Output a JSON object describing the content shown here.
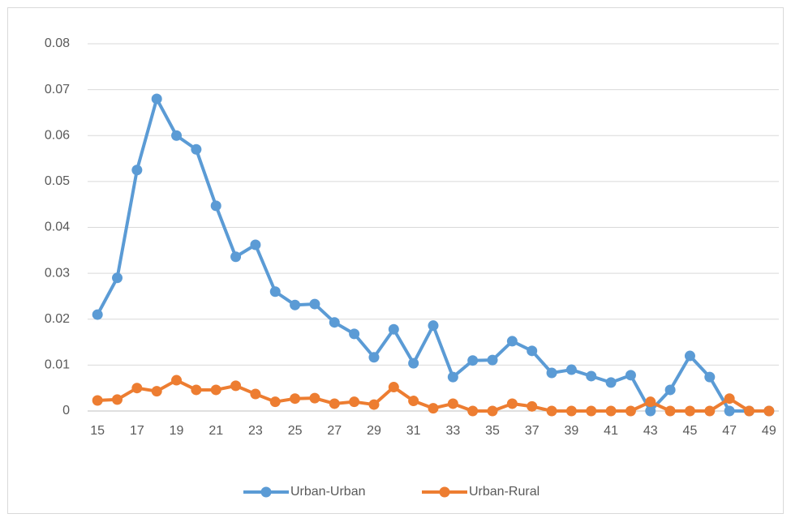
{
  "chart_data": {
    "type": "line",
    "categories": [
      15,
      null,
      17,
      null,
      19,
      null,
      21,
      null,
      23,
      null,
      25,
      null,
      27,
      null,
      29,
      null,
      31,
      null,
      33,
      null,
      35,
      null,
      37,
      null,
      39,
      null,
      41,
      null,
      43,
      null,
      45,
      null,
      47,
      null,
      49
    ],
    "series": [
      {
        "name": "Urban-Urban",
        "color": "#5b9bd5",
        "values": [
          0.021,
          0.029,
          0.0525,
          0.068,
          0.06,
          0.057,
          0.0447,
          0.0336,
          0.0362,
          0.026,
          0.0231,
          0.0233,
          0.0193,
          0.0168,
          0.0117,
          0.0178,
          0.0104,
          0.0186,
          0.0074,
          0.011,
          0.0111,
          0.0152,
          0.0131,
          0.0083,
          0.009,
          0.0076,
          0.0062,
          0.0078,
          0,
          0.0046,
          0.012,
          0.0074,
          0,
          0,
          0
        ]
      },
      {
        "name": "Urban-Rural",
        "color": "#ed7d31",
        "values": [
          0.0023,
          0.0025,
          0.005,
          0.0043,
          0.0067,
          0.0046,
          0.0046,
          0.0055,
          0.0037,
          0.002,
          0.0027,
          0.0028,
          0.0016,
          0.002,
          0.0014,
          0.0052,
          0.0022,
          0.0006,
          0.0016,
          0,
          0,
          0.0016,
          0.001,
          0,
          0,
          0,
          0,
          0,
          0.002,
          0,
          0,
          0,
          0.0027,
          0,
          0
        ]
      }
    ],
    "ylim": [
      0,
      0.08
    ],
    "yticks": [
      0,
      0.01,
      0.02,
      0.03,
      0.04,
      0.05,
      0.06,
      0.07,
      0.08
    ],
    "grid": true,
    "legend": "bottom"
  }
}
